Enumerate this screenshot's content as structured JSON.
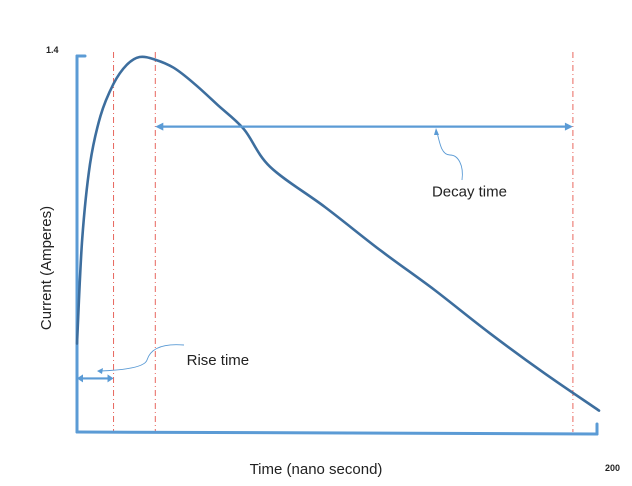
{
  "chart_data": {
    "type": "line",
    "title": "",
    "xlabel": "Time (nano second)",
    "ylabel": "Current (Amperes)",
    "xlim": [
      0,
      200
    ],
    "ylim": [
      0,
      1.4
    ],
    "x_tick_labels": [
      {
        "value": 200,
        "label": "200"
      }
    ],
    "y_tick_labels": [
      {
        "value": 1.4,
        "label": "1.4"
      }
    ],
    "grid": false,
    "legend": "none",
    "series": [
      {
        "color": "#3d6e9e",
        "x": [
          0,
          2,
          5,
          9,
          14,
          19,
          24,
          30,
          37,
          45,
          54,
          64,
          74,
          95,
          116,
          137,
          158,
          179,
          200
        ],
        "y": [
          0.33,
          0.72,
          1.0,
          1.18,
          1.3,
          1.37,
          1.4,
          1.39,
          1.36,
          1.3,
          1.22,
          1.13,
          0.99,
          0.84,
          0.68,
          0.53,
          0.37,
          0.22,
          0.08
        ]
      }
    ],
    "markers": [
      {
        "x": 14,
        "color": "#e8675f",
        "style": "dash-dot"
      },
      {
        "x": 30,
        "color": "#e8675f",
        "style": "dash-dot"
      },
      {
        "x": 190,
        "color": "#e8675f",
        "style": "dash-dot"
      }
    ],
    "spans": [
      {
        "name": "rise",
        "from": 0,
        "to": 14,
        "y": 0.2,
        "color": "#5b9bd5"
      },
      {
        "name": "decay",
        "from": 30,
        "to": 190,
        "y": 1.14,
        "color": "#5b9bd5"
      }
    ],
    "annotations": [
      {
        "text": "Rise time",
        "x": 42,
        "y": 0.25
      },
      {
        "text": "Decay time",
        "x": 136,
        "y": 0.88
      }
    ],
    "accent_color": "#5b9bd5"
  }
}
